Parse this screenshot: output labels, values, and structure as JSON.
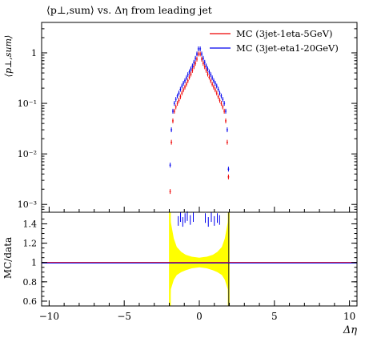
{
  "chart_data": {
    "type": "scatter",
    "title": "⟨p⊥,sum⟩ vs. Δη from leading jet",
    "ylabel": "⟨p⊥,sum⟩",
    "xlabel": "Δη",
    "yscale": "log",
    "xlim": [
      -10.5,
      10.5
    ],
    "ylim": [
      0.0007,
      4.0
    ],
    "x_ticks": [
      -10,
      -5,
      0,
      5,
      10
    ],
    "y_ticks": [
      {
        "value": 0.001,
        "label": "10⁻³"
      },
      {
        "value": 0.01,
        "label": "10⁻²"
      },
      {
        "value": 0.1,
        "label": "10⁻¹"
      },
      {
        "value": 1,
        "label": "1"
      }
    ],
    "legend_position": "top-right",
    "series": [
      {
        "name": "MC (3jet-1eta-5GeV)",
        "color": "#ee0000",
        "points": [
          {
            "x": -1.94,
            "y": 0.0018
          },
          {
            "x": -1.86,
            "y": 0.017
          },
          {
            "x": -1.76,
            "y": 0.045
          },
          {
            "x": -1.66,
            "y": 0.07
          },
          {
            "x": -1.56,
            "y": 0.085
          },
          {
            "x": -1.46,
            "y": 0.1
          },
          {
            "x": -1.36,
            "y": 0.115
          },
          {
            "x": -1.26,
            "y": 0.135
          },
          {
            "x": -1.16,
            "y": 0.16
          },
          {
            "x": -1.06,
            "y": 0.185
          },
          {
            "x": -0.96,
            "y": 0.21
          },
          {
            "x": -0.86,
            "y": 0.24
          },
          {
            "x": -0.76,
            "y": 0.28
          },
          {
            "x": -0.66,
            "y": 0.33
          },
          {
            "x": -0.56,
            "y": 0.38
          },
          {
            "x": -0.46,
            "y": 0.45
          },
          {
            "x": -0.36,
            "y": 0.53
          },
          {
            "x": -0.26,
            "y": 0.62
          },
          {
            "x": -0.16,
            "y": 0.75
          },
          {
            "x": -0.06,
            "y": 0.95
          },
          {
            "x": 0.06,
            "y": 0.95
          },
          {
            "x": 0.16,
            "y": 0.75
          },
          {
            "x": 0.26,
            "y": 0.62
          },
          {
            "x": 0.36,
            "y": 0.53
          },
          {
            "x": 0.46,
            "y": 0.45
          },
          {
            "x": 0.56,
            "y": 0.38
          },
          {
            "x": 0.66,
            "y": 0.33
          },
          {
            "x": 0.76,
            "y": 0.28
          },
          {
            "x": 0.86,
            "y": 0.24
          },
          {
            "x": 0.96,
            "y": 0.21
          },
          {
            "x": 1.06,
            "y": 0.185
          },
          {
            "x": 1.16,
            "y": 0.16
          },
          {
            "x": 1.26,
            "y": 0.135
          },
          {
            "x": 1.36,
            "y": 0.115
          },
          {
            "x": 1.46,
            "y": 0.1
          },
          {
            "x": 1.56,
            "y": 0.085
          },
          {
            "x": 1.66,
            "y": 0.07
          },
          {
            "x": 1.76,
            "y": 0.045
          },
          {
            "x": 1.86,
            "y": 0.017
          },
          {
            "x": 1.94,
            "y": 0.0035
          }
        ]
      },
      {
        "name": "MC (3jet-eta1-20GeV)",
        "color": "#0000ee",
        "points": [
          {
            "x": -1.94,
            "y": 0.006
          },
          {
            "x": -1.86,
            "y": 0.03
          },
          {
            "x": -1.76,
            "y": 0.07
          },
          {
            "x": -1.66,
            "y": 0.1
          },
          {
            "x": -1.56,
            "y": 0.12
          },
          {
            "x": -1.46,
            "y": 0.14
          },
          {
            "x": -1.36,
            "y": 0.16
          },
          {
            "x": -1.26,
            "y": 0.19
          },
          {
            "x": -1.16,
            "y": 0.22
          },
          {
            "x": -1.06,
            "y": 0.25
          },
          {
            "x": -0.96,
            "y": 0.28
          },
          {
            "x": -0.86,
            "y": 0.32
          },
          {
            "x": -0.76,
            "y": 0.37
          },
          {
            "x": -0.66,
            "y": 0.42
          },
          {
            "x": -0.56,
            "y": 0.48
          },
          {
            "x": -0.46,
            "y": 0.55
          },
          {
            "x": -0.36,
            "y": 0.65
          },
          {
            "x": -0.26,
            "y": 0.78
          },
          {
            "x": -0.16,
            "y": 0.95
          },
          {
            "x": -0.06,
            "y": 1.2
          },
          {
            "x": 0.06,
            "y": 1.2
          },
          {
            "x": 0.16,
            "y": 0.95
          },
          {
            "x": 0.26,
            "y": 0.78
          },
          {
            "x": 0.36,
            "y": 0.65
          },
          {
            "x": 0.46,
            "y": 0.55
          },
          {
            "x": 0.56,
            "y": 0.48
          },
          {
            "x": 0.66,
            "y": 0.42
          },
          {
            "x": 0.76,
            "y": 0.37
          },
          {
            "x": 0.86,
            "y": 0.32
          },
          {
            "x": 0.96,
            "y": 0.28
          },
          {
            "x": 1.06,
            "y": 0.25
          },
          {
            "x": 1.16,
            "y": 0.22
          },
          {
            "x": 1.26,
            "y": 0.19
          },
          {
            "x": 1.36,
            "y": 0.16
          },
          {
            "x": 1.46,
            "y": 0.14
          },
          {
            "x": 1.56,
            "y": 0.12
          },
          {
            "x": 1.66,
            "y": 0.1
          },
          {
            "x": 1.76,
            "y": 0.07
          },
          {
            "x": 1.86,
            "y": 0.03
          },
          {
            "x": 1.94,
            "y": 0.005
          }
        ]
      }
    ],
    "ratio_panel": {
      "ylabel": "MC/data",
      "ylim": [
        0.55,
        1.52
      ],
      "y_ticks": [
        0.6,
        0.8,
        1,
        1.2,
        1.4
      ],
      "reference_line": 1,
      "band_color": "#ffff00",
      "band": [
        {
          "x": -1.96,
          "lo": 0.55,
          "hi": 1.52
        },
        {
          "x": -1.9,
          "lo": 0.72,
          "hi": 1.42
        },
        {
          "x": -1.7,
          "lo": 0.82,
          "hi": 1.25
        },
        {
          "x": -1.5,
          "lo": 0.87,
          "hi": 1.16
        },
        {
          "x": -1.2,
          "lo": 0.9,
          "hi": 1.11
        },
        {
          "x": -0.9,
          "lo": 0.92,
          "hi": 1.08
        },
        {
          "x": -0.5,
          "lo": 0.94,
          "hi": 1.06
        },
        {
          "x": 0.0,
          "lo": 0.95,
          "hi": 1.05
        },
        {
          "x": 0.5,
          "lo": 0.94,
          "hi": 1.06
        },
        {
          "x": 0.9,
          "lo": 0.92,
          "hi": 1.08
        },
        {
          "x": 1.2,
          "lo": 0.9,
          "hi": 1.11
        },
        {
          "x": 1.5,
          "lo": 0.87,
          "hi": 1.16
        },
        {
          "x": 1.7,
          "lo": 0.82,
          "hi": 1.25
        },
        {
          "x": 1.9,
          "lo": 0.72,
          "hi": 1.42
        },
        {
          "x": 1.96,
          "lo": 0.55,
          "hi": 1.52
        }
      ],
      "series2_ratio": [
        {
          "x": -1.4,
          "y": 1.43
        },
        {
          "x": -1.25,
          "y": 1.47
        },
        {
          "x": -1.1,
          "y": 1.42
        },
        {
          "x": -0.95,
          "y": 1.46
        },
        {
          "x": -0.8,
          "y": 1.48
        },
        {
          "x": -0.6,
          "y": 1.44
        },
        {
          "x": -0.4,
          "y": 1.47
        },
        {
          "x": 0.4,
          "y": 1.46
        },
        {
          "x": 0.6,
          "y": 1.42
        },
        {
          "x": 0.8,
          "y": 1.47
        },
        {
          "x": 1.0,
          "y": 1.43
        },
        {
          "x": 1.2,
          "y": 1.46
        },
        {
          "x": 1.35,
          "y": 1.44
        }
      ]
    }
  }
}
